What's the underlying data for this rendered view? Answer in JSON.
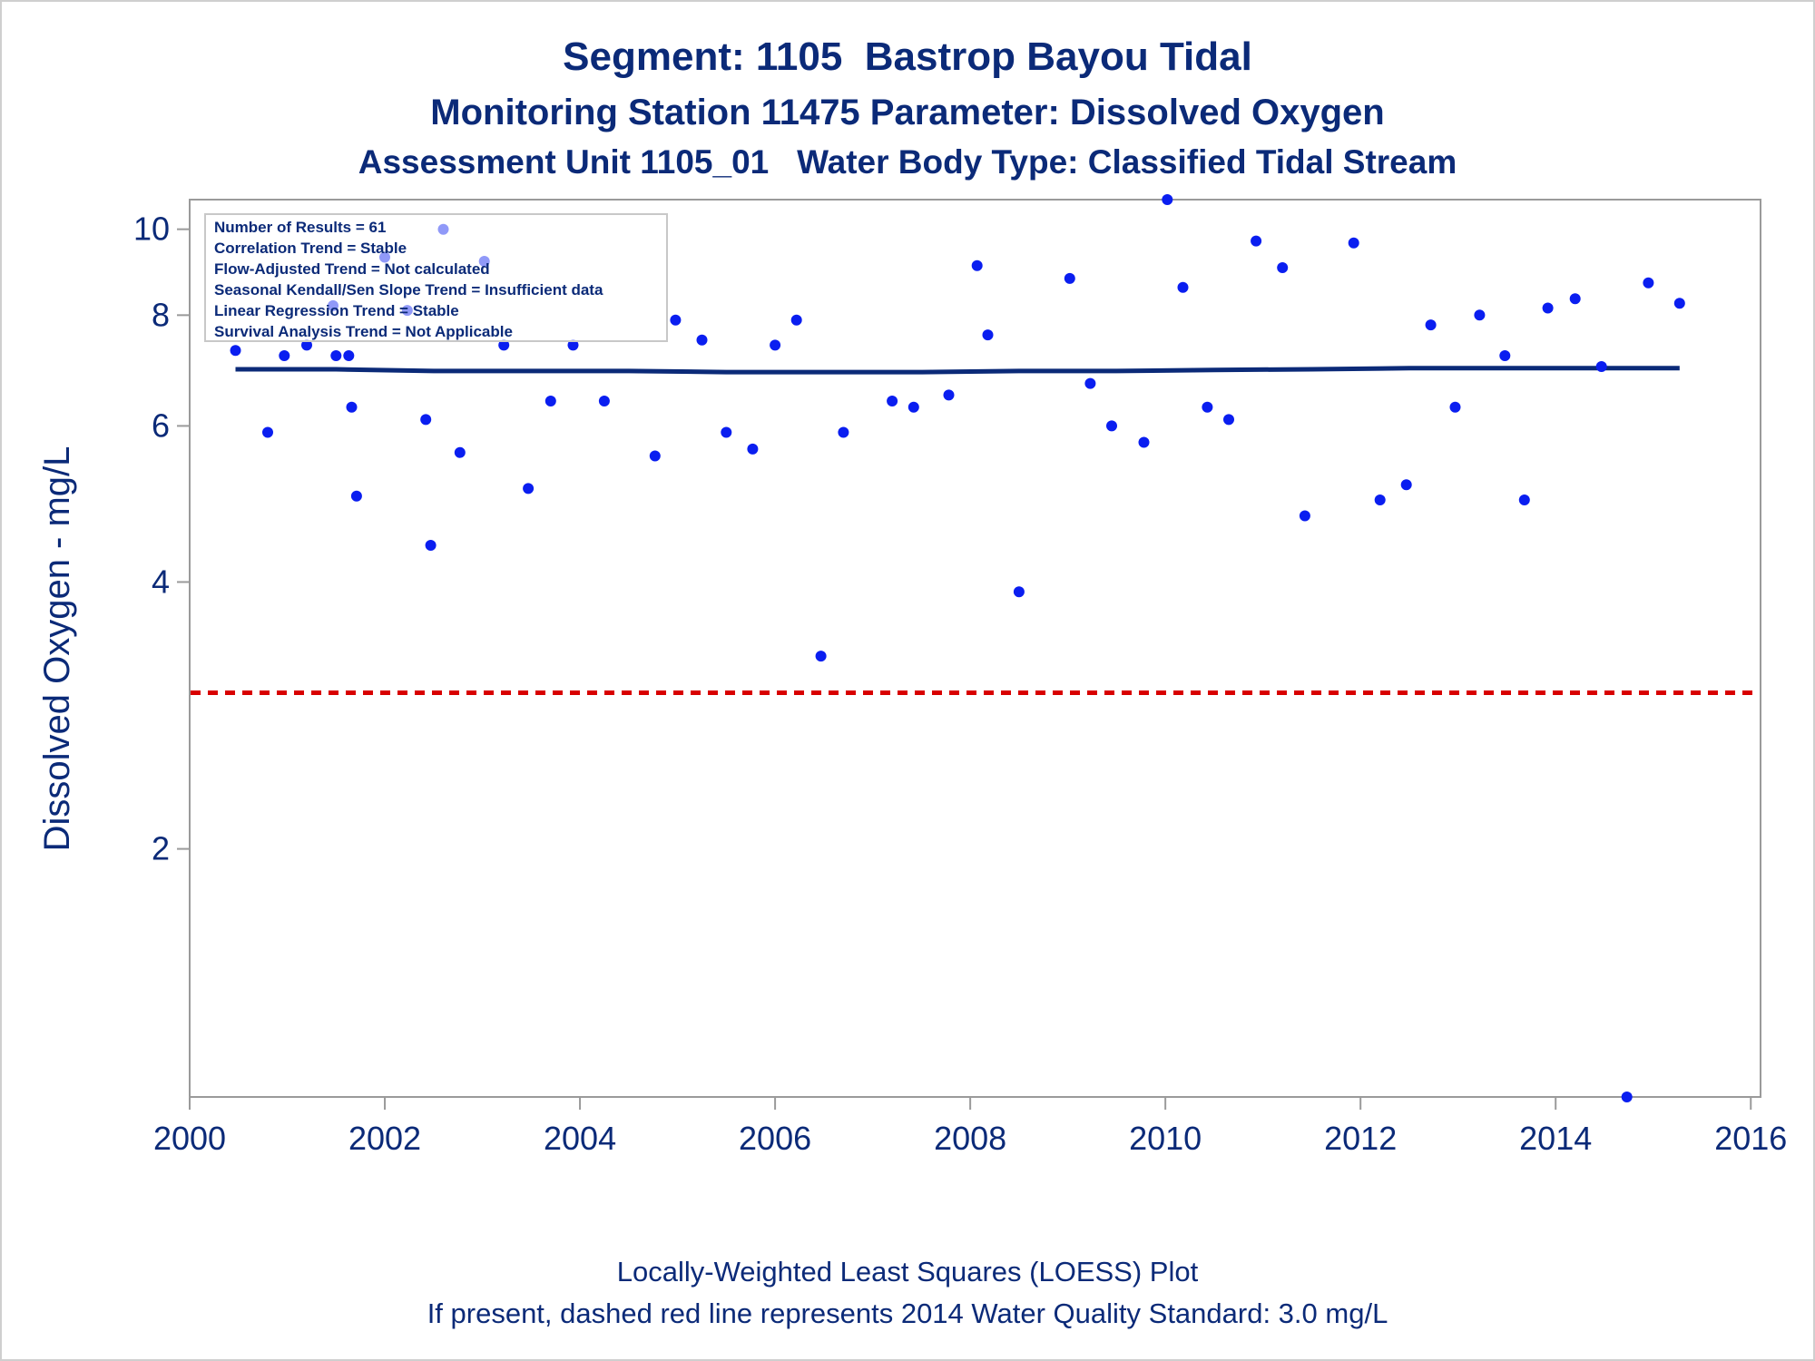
{
  "titles": {
    "line1": "Segment: 1105  Bastrop Bayou Tidal",
    "line2": "Monitoring Station 11475 Parameter: Dissolved Oxygen",
    "line3": "Assessment Unit 1105_01   Water Body Type: Classified Tidal Stream"
  },
  "footnotes": {
    "line1": "Locally-Weighted Least Squares (LOESS) Plot",
    "line2": "If present, dashed red line represents 2014 Water Quality Standard: 3.0 mg/L"
  },
  "legend": {
    "lines": [
      "Number of Results = 61",
      "Correlation Trend = Stable",
      "Flow-Adjusted Trend = Not calculated",
      "Seasonal Kendall/Sen Slope Trend = Insufficient data",
      "Linear Regression Trend = Stable",
      "Survival Analysis Trend = Not Applicable"
    ]
  },
  "colors": {
    "text": "#0b2a78",
    "points": "#0a1ef0",
    "loess": "#0b2a78",
    "standard": "#d80000",
    "axis": "#9a9a9a"
  },
  "chart_data": {
    "type": "scatter",
    "ylabel": "Dissolved Oxygen - mg/L",
    "yscale": "log",
    "xlim": [
      2000,
      2016.1
    ],
    "ylim": [
      1.05,
      10.8
    ],
    "x_ticks": [
      2000,
      2002,
      2004,
      2006,
      2008,
      2010,
      2012,
      2014,
      2016
    ],
    "x_tick_labels": [
      "2000",
      "2002",
      "2004",
      "2006",
      "2008",
      "2010",
      "2012",
      "2014",
      "2016"
    ],
    "y_ticks": [
      2,
      4,
      6,
      8,
      10
    ],
    "y_tick_labels": [
      "2",
      "4",
      "6",
      "8",
      "10"
    ],
    "grid": false,
    "legend_placement": "top-left",
    "standard_line": 3.0,
    "series": [
      {
        "type": "scatter",
        "x": [
          2000.47,
          2000.8,
          2000.97,
          2001.2,
          2001.47,
          2001.5,
          2001.63,
          2001.66,
          2001.71,
          2002.0,
          2002.23,
          2002.42,
          2002.47,
          2002.6,
          2002.77,
          2003.02,
          2003.22,
          2003.47,
          2003.7,
          2003.93,
          2004.25,
          2004.77,
          2004.98,
          2005.25,
          2005.5,
          2005.77,
          2006.0,
          2006.22,
          2006.47,
          2006.7,
          2007.2,
          2007.42,
          2007.78,
          2008.07,
          2008.18,
          2008.5,
          2009.02,
          2009.23,
          2009.45,
          2009.78,
          2010.02,
          2010.18,
          2010.43,
          2010.65,
          2010.93,
          2011.2,
          2011.43,
          2011.93,
          2012.2,
          2012.47,
          2012.72,
          2012.97,
          2013.22,
          2013.48,
          2013.68,
          2013.92,
          2014.2,
          2014.47,
          2014.73,
          2014.95,
          2015.27
        ],
        "y": [
          7.3,
          5.9,
          7.2,
          7.4,
          8.2,
          7.2,
          7.2,
          6.3,
          5.0,
          9.3,
          8.1,
          6.1,
          4.4,
          10.0,
          5.6,
          9.2,
          7.4,
          5.1,
          6.4,
          7.4,
          6.4,
          5.55,
          7.9,
          7.5,
          5.9,
          5.65,
          7.4,
          7.9,
          3.3,
          5.9,
          6.4,
          6.3,
          6.5,
          9.1,
          7.6,
          3.9,
          8.8,
          6.7,
          6.0,
          5.75,
          10.8,
          8.6,
          6.3,
          6.1,
          9.7,
          9.05,
          4.75,
          9.65,
          4.95,
          5.15,
          7.8,
          6.3,
          8.0,
          7.2,
          4.95,
          8.15,
          8.35,
          7.0,
          1.05,
          8.7,
          8.25
        ]
      },
      {
        "type": "line",
        "name": "LOESS",
        "x": [
          2000.47,
          2001.5,
          2002.5,
          2003.5,
          2004.5,
          2005.5,
          2006.5,
          2007.5,
          2008.5,
          2009.5,
          2010.5,
          2011.5,
          2012.5,
          2013.5,
          2014.5,
          2015.27
        ],
        "y": [
          6.95,
          6.95,
          6.92,
          6.92,
          6.92,
          6.9,
          6.9,
          6.9,
          6.92,
          6.92,
          6.94,
          6.95,
          6.97,
          6.97,
          6.97,
          6.97
        ]
      }
    ]
  }
}
